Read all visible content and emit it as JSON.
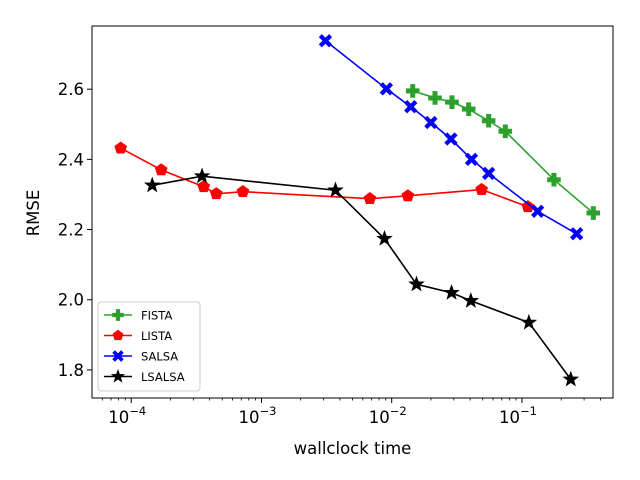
{
  "chart_data": {
    "type": "line",
    "title": "",
    "xlabel": "wallclock time",
    "ylabel": "RMSE",
    "xscale": "log",
    "xlim": [
      5e-05,
      0.5
    ],
    "ylim": [
      1.72,
      2.78
    ],
    "x_ticks": [
      {
        "value": 0.0001,
        "base": "10",
        "exp": "−4"
      },
      {
        "value": 0.001,
        "base": "10",
        "exp": "−3"
      },
      {
        "value": 0.01,
        "base": "10",
        "exp": "−2"
      },
      {
        "value": 0.1,
        "base": "10",
        "exp": "−1"
      }
    ],
    "y_ticks": [
      {
        "value": 1.8,
        "label": "1.8"
      },
      {
        "value": 2.0,
        "label": "2.0"
      },
      {
        "value": 2.2,
        "label": "2.2"
      },
      {
        "value": 2.4,
        "label": "2.4"
      },
      {
        "value": 2.6,
        "label": "2.6"
      }
    ],
    "grid": false,
    "legend_position": "lower-left",
    "series": [
      {
        "name": "FISTA",
        "color": "#2ca02c",
        "marker": "plus",
        "x": [
          0.0145,
          0.0215,
          0.029,
          0.039,
          0.0555,
          0.0745,
          0.176,
          0.353
        ],
        "y": [
          2.595,
          2.575,
          2.563,
          2.543,
          2.51,
          2.48,
          2.342,
          2.247
        ]
      },
      {
        "name": "LISTA",
        "color": "#ff0000",
        "marker": "pentagon",
        "x": [
          8.3e-05,
          0.00017,
          0.00036,
          0.00045,
          0.00072,
          0.0068,
          0.0133,
          0.049,
          0.111
        ],
        "y": [
          2.432,
          2.37,
          2.322,
          2.302,
          2.308,
          2.288,
          2.296,
          2.314,
          2.265
        ]
      },
      {
        "name": "SALSA",
        "color": "#0000ff",
        "marker": "x",
        "x": [
          0.0031,
          0.0091,
          0.014,
          0.02,
          0.0285,
          0.041,
          0.0555,
          0.132,
          0.263
        ],
        "y": [
          2.738,
          2.601,
          2.55,
          2.505,
          2.458,
          2.4,
          2.36,
          2.252,
          2.188
        ]
      },
      {
        "name": "LSALSA",
        "color": "#000000",
        "marker": "star",
        "x": [
          0.000145,
          0.00035,
          0.0037,
          0.0088,
          0.0155,
          0.0288,
          0.0405,
          0.113,
          0.237
        ],
        "y": [
          2.326,
          2.352,
          2.312,
          2.174,
          2.044,
          2.02,
          1.997,
          1.935,
          1.773
        ]
      }
    ]
  }
}
